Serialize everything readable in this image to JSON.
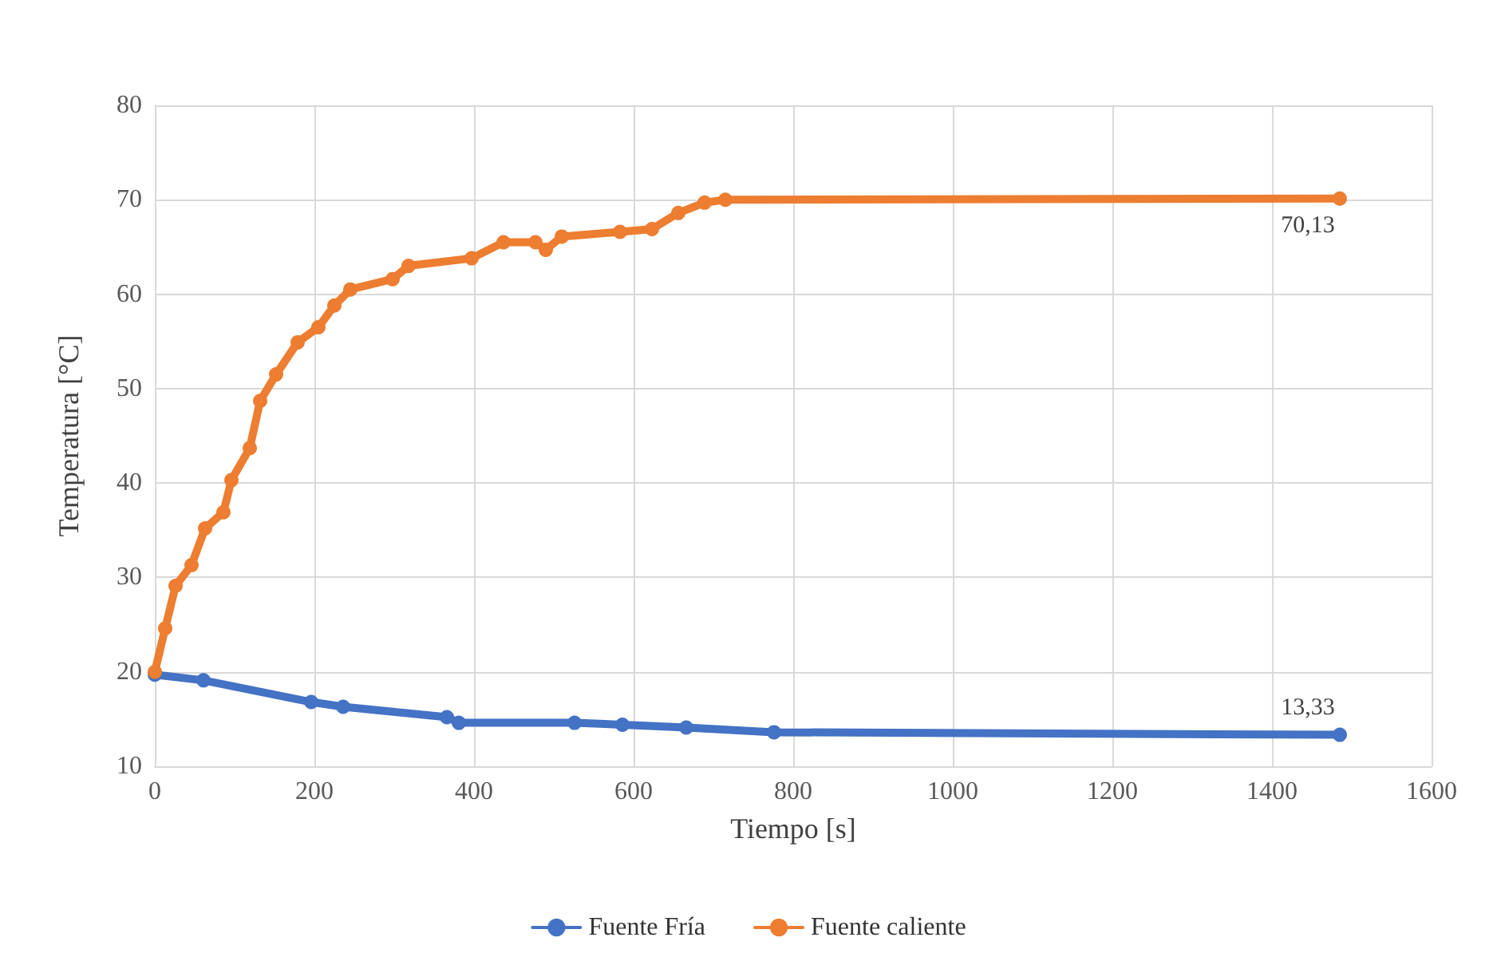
{
  "chart_data": {
    "type": "line",
    "xlabel": "Tiempo [s]",
    "ylabel": "Temperatura [°C]",
    "xlim": [
      0,
      1600
    ],
    "xticks": [
      0,
      200,
      400,
      600,
      800,
      1000,
      1200,
      1400,
      1600
    ],
    "ylim": [
      10,
      80
    ],
    "yticks": [
      10,
      20,
      30,
      40,
      50,
      60,
      70,
      80
    ],
    "grid": true,
    "legend": "bottom",
    "marker": "circle",
    "line_style": "solid",
    "series": [
      {
        "name": "Fuente Fría",
        "color": "#4472c4",
        "x": [
          0,
          61,
          196,
          236,
          366,
          381,
          526,
          586,
          666,
          776,
          1485
        ],
        "values": [
          19.7,
          19.1,
          16.8,
          16.3,
          15.2,
          14.6,
          14.6,
          14.4,
          14.1,
          13.6,
          13.33
        ],
        "value_labels": [
          null,
          null,
          null,
          null,
          null,
          null,
          null,
          null,
          null,
          null,
          "13,33"
        ]
      },
      {
        "name": "Fuente caliente",
        "color": "#ed7d31",
        "x": [
          0,
          13,
          26,
          46,
          63,
          86,
          96,
          119,
          132,
          152,
          179,
          205,
          225,
          245,
          298,
          318,
          397,
          437,
          477,
          490,
          510,
          583,
          623,
          656,
          689,
          715,
          1485
        ],
        "values": [
          20,
          24.6,
          29.1,
          31.3,
          35.2,
          36.9,
          40.3,
          43.7,
          48.7,
          51.5,
          54.9,
          56.5,
          58.8,
          60.5,
          61.6,
          63,
          63.8,
          65.5,
          65.5,
          64.7,
          66.1,
          66.6,
          66.9,
          68.6,
          69.7,
          70,
          70.13
        ],
        "value_labels": [
          null,
          null,
          null,
          null,
          null,
          null,
          null,
          null,
          null,
          null,
          null,
          null,
          null,
          null,
          null,
          null,
          null,
          null,
          null,
          null,
          null,
          null,
          null,
          null,
          null,
          null,
          "70,13"
        ]
      }
    ]
  }
}
